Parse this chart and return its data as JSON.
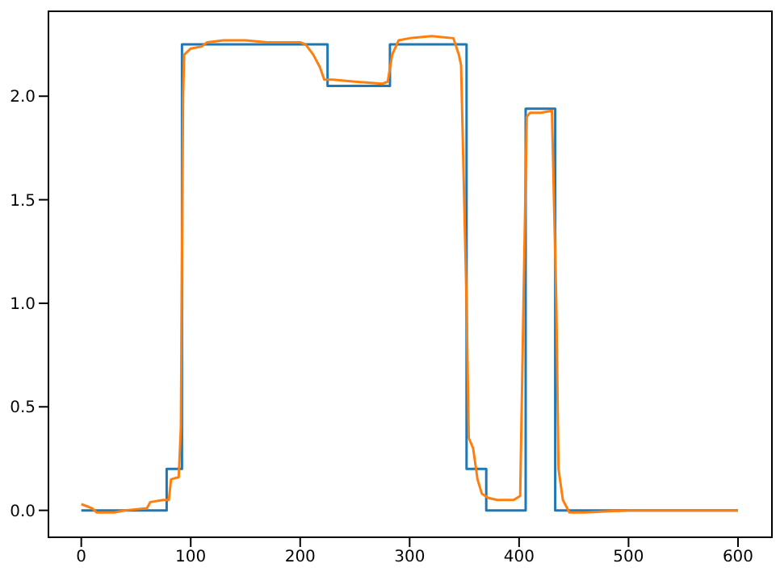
{
  "chart_data": {
    "type": "line",
    "xlim": [
      -30,
      631
    ],
    "ylim": [
      -0.13,
      2.41
    ],
    "xticks": [
      0,
      100,
      200,
      300,
      400,
      500,
      600
    ],
    "yticks": [
      {
        "value": 0,
        "label": "0.0"
      },
      0.5,
      {
        "value": 1,
        "label": "1.0"
      },
      1.5,
      {
        "value": 2,
        "label": "2.0"
      }
    ],
    "grid": false,
    "legend": false,
    "marker": "none",
    "line_style": "solid",
    "series": [
      {
        "type": "step",
        "color": "#1f77b4",
        "x": [
          0,
          78,
          92,
          225,
          282,
          352,
          370,
          406,
          433,
          600
        ],
        "values": [
          0,
          0.2,
          2.25,
          2.05,
          2.25,
          0.2,
          0,
          1.94,
          0,
          0
        ]
      },
      {
        "color": "#ff7f0e",
        "x": [
          0,
          5,
          10,
          14,
          30,
          40,
          60,
          63,
          75,
          80,
          82,
          89,
          91,
          93,
          94,
          100,
          110,
          115,
          130,
          150,
          170,
          190,
          200,
          205,
          212,
          218,
          222,
          230,
          250,
          275,
          280,
          284,
          290,
          300,
          320,
          340,
          345,
          347,
          352,
          354,
          358,
          362,
          366,
          372,
          380,
          395,
          401,
          404,
          407,
          410,
          420,
          430,
          434,
          436,
          440,
          446,
          460,
          500,
          600
        ],
        "values": [
          0.03,
          0.02,
          0.01,
          -0.01,
          -0.01,
          0,
          0.01,
          0.04,
          0.05,
          0.05,
          0.15,
          0.16,
          0.4,
          2.0,
          2.2,
          2.23,
          2.24,
          2.26,
          2.27,
          2.27,
          2.26,
          2.26,
          2.26,
          2.25,
          2.2,
          2.14,
          2.08,
          2.08,
          2.07,
          2.06,
          2.07,
          2.2,
          2.27,
          2.28,
          2.29,
          2.28,
          2.2,
          2.15,
          1.0,
          0.35,
          0.3,
          0.15,
          0.08,
          0.06,
          0.05,
          0.05,
          0.07,
          1.0,
          1.9,
          1.92,
          1.92,
          1.93,
          1.0,
          0.2,
          0.05,
          -0.01,
          -0.01,
          0,
          0
        ]
      }
    ]
  }
}
